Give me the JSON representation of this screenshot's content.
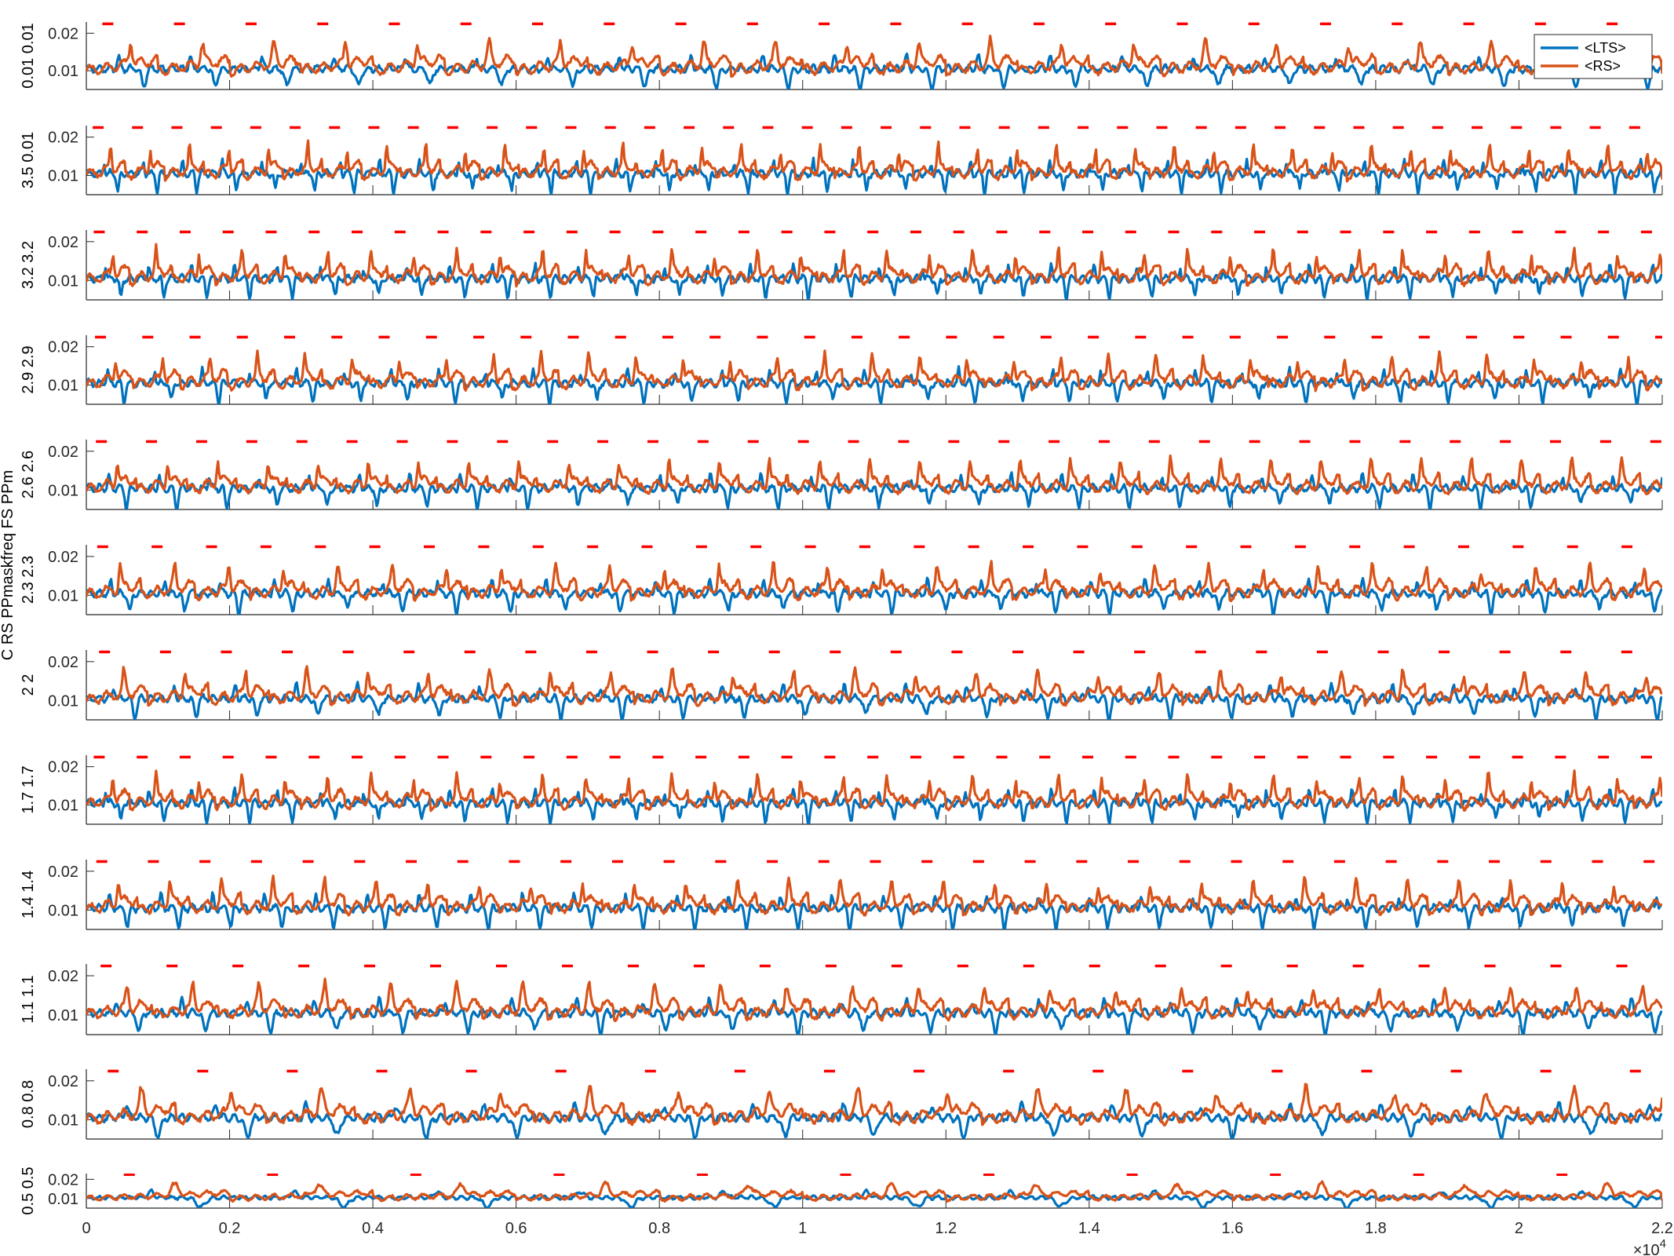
{
  "chart_data": {
    "type": "line",
    "x_axis": {
      "range": [
        0,
        22000
      ],
      "ticks": [
        0,
        2000,
        4000,
        6000,
        8000,
        10000,
        12000,
        14000,
        16000,
        18000,
        20000,
        22000
      ],
      "tick_labels": [
        "0",
        "0.2",
        "0.4",
        "0.6",
        "0.8",
        "1",
        "1.2",
        "1.4",
        "1.6",
        "1.8",
        "2",
        "2.2"
      ],
      "exponent_label": "×10",
      "exponent_power": "4"
    },
    "y_axis": {
      "ylim": [
        0.005,
        0.023
      ],
      "ticks": [
        0.01,
        0.02
      ],
      "tick_labels": [
        "0.01",
        "0.02"
      ],
      "shared_label": "C RS PPmaskfreq FS PPm"
    },
    "legend": {
      "placement": "top-right",
      "entries": [
        {
          "name": "<LTS>",
          "color": "#0072BD"
        },
        {
          "name": "<RS>",
          "color": "#D95319"
        }
      ]
    },
    "marker_color": "#FF0000",
    "marker_level": 0.0225,
    "panels": [
      {
        "row_label": "0.01 0.01",
        "freq": 0.01,
        "period": 1000
      },
      {
        "row_label": "3.5 0.01",
        "freq": 3.5,
        "period": 550
      },
      {
        "row_label": "3.2 3.2",
        "freq": 3.2,
        "period": 600
      },
      {
        "row_label": "2.9 2.9",
        "freq": 2.9,
        "period": 660
      },
      {
        "row_label": "2.6 2.6",
        "freq": 2.6,
        "period": 700
      },
      {
        "row_label": "2.3 2.3",
        "freq": 2.3,
        "period": 760
      },
      {
        "row_label": "2 2",
        "freq": 2,
        "period": 850
      },
      {
        "row_label": "1.7 1.7",
        "freq": 1.7,
        "period": 600
      },
      {
        "row_label": "1.4 1.4",
        "freq": 1.4,
        "period": 720
      },
      {
        "row_label": "1.1 1.1",
        "freq": 1.1,
        "period": 920
      },
      {
        "row_label": "0.8 0.8",
        "freq": 0.8,
        "period": 1250
      },
      {
        "row_label": "0.5 0.5",
        "freq": 0.5,
        "period": 2000
      }
    ],
    "series": [
      {
        "name": "<LTS>",
        "color": "#0072BD",
        "baseline": 0.0105,
        "trough": 0.0058,
        "peak": 0.0145
      },
      {
        "name": "<RS>",
        "color": "#D95319",
        "baseline": 0.01,
        "peak": 0.0185
      }
    ]
  }
}
